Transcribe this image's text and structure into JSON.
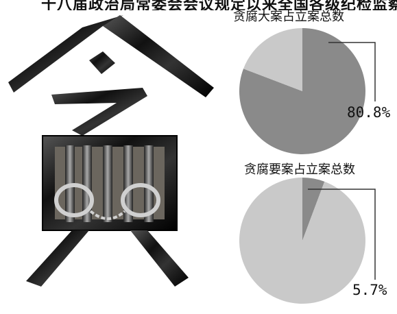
{
  "page_title": "十八届政治局常委会会议规定以来全国各级纪检监察机关查办腐败案件情况",
  "art_glyph": "贪",
  "colors": {
    "major_slice": "#8a8a8a",
    "minor_slice": "#c9c9c9",
    "leader": "#333333"
  },
  "chart_data": [
    {
      "type": "pie",
      "title": "贪腐大案占立案总数",
      "slices": [
        {
          "value": 80.8,
          "color": "#8a8a8a",
          "label": "80.8%"
        },
        {
          "value": 19.2,
          "color": "#c9c9c9"
        }
      ],
      "start": "12 o'clock, clockwise"
    },
    {
      "type": "pie",
      "title": "贪腐要案占立案总数",
      "slices": [
        {
          "value": 5.7,
          "color": "#8a8a8a",
          "label": "5.7%"
        },
        {
          "value": 94.3,
          "color": "#c9c9c9"
        }
      ],
      "start": "12 o'clock, clockwise"
    }
  ]
}
